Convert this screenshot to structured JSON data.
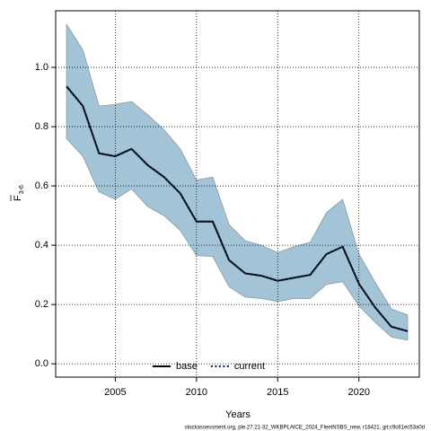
{
  "chart_data": {
    "type": "line",
    "xlabel": "Years",
    "ylabel": {
      "symbol": "F",
      "subscript": "3-6"
    },
    "footer": "stockassessment.org, ple.27.21-32_WKBPLAICE_2024_FleetNSBS_new, r18421, git:c9c81ec53a0d",
    "x": [
      2002,
      2003,
      2004,
      2005,
      2006,
      2007,
      2008,
      2009,
      2010,
      2011,
      2012,
      2013,
      2014,
      2015,
      2016,
      2017,
      2018,
      2019,
      2020,
      2021,
      2022,
      2023
    ],
    "band": {
      "color": "#a3c3d6",
      "edge": "#8a9aa5",
      "upper": [
        1.145,
        1.06,
        0.87,
        0.875,
        0.885,
        0.84,
        0.79,
        0.725,
        0.62,
        0.63,
        0.47,
        0.415,
        0.4,
        0.375,
        0.395,
        0.41,
        0.51,
        0.555,
        0.37,
        0.275,
        0.185,
        0.165
      ],
      "lower": [
        0.76,
        0.7,
        0.58,
        0.555,
        0.59,
        0.53,
        0.5,
        0.45,
        0.365,
        0.362,
        0.26,
        0.225,
        0.22,
        0.21,
        0.22,
        0.22,
        0.268,
        0.277,
        0.195,
        0.14,
        0.09,
        0.08
      ]
    },
    "series": [
      {
        "name": "base",
        "color": "#000000",
        "dash": "solid",
        "values": [
          0.936,
          0.87,
          0.71,
          0.7,
          0.725,
          0.67,
          0.63,
          0.575,
          0.48,
          0.48,
          0.35,
          0.305,
          0.297,
          0.28,
          0.29,
          0.3,
          0.37,
          0.395,
          0.27,
          0.19,
          0.125,
          0.11
        ]
      },
      {
        "name": "current",
        "color": "#0b2a4a",
        "dash": "dotted",
        "values": [
          0.936,
          0.87,
          0.71,
          0.7,
          0.725,
          0.67,
          0.63,
          0.575,
          0.48,
          0.48,
          0.35,
          0.305,
          0.297,
          0.28,
          0.29,
          0.3,
          0.37,
          0.395,
          0.27,
          0.19,
          0.125,
          0.11
        ]
      }
    ],
    "xlim": [
      2001.33,
      2023.72
    ],
    "xticks": [
      2005,
      2010,
      2015,
      2020
    ],
    "ylim": [
      -0.045,
      1.191
    ],
    "yticks": [
      {
        "value": 0,
        "label": "0.0"
      },
      0.2,
      0.4,
      0.6,
      0.8,
      {
        "value": 1,
        "label": "1.0"
      }
    ],
    "grid": true,
    "legend": "bottom"
  }
}
